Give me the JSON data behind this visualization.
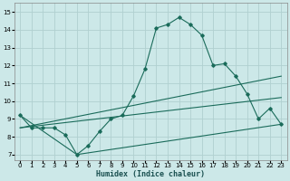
{
  "xlabel": "Humidex (Indice chaleur)",
  "background_color": "#cce8e8",
  "grid_color": "#b0d0d0",
  "line_color": "#1a6b5a",
  "xlim": [
    -0.5,
    23.5
  ],
  "ylim": [
    6.7,
    15.5
  ],
  "xticks": [
    0,
    1,
    2,
    3,
    4,
    5,
    6,
    7,
    8,
    9,
    10,
    11,
    12,
    13,
    14,
    15,
    16,
    17,
    18,
    19,
    20,
    21,
    22,
    23
  ],
  "yticks": [
    7,
    8,
    9,
    10,
    11,
    12,
    13,
    14,
    15
  ],
  "line1_x": [
    0,
    1,
    2,
    3,
    4,
    5,
    6,
    7,
    8,
    9,
    10,
    11,
    12,
    13,
    14,
    15,
    16,
    17,
    18,
    19,
    20,
    21,
    22,
    23
  ],
  "line1_y": [
    9.2,
    8.5,
    8.5,
    8.5,
    8.1,
    7.0,
    7.5,
    8.3,
    9.0,
    9.2,
    10.3,
    11.8,
    14.1,
    14.3,
    14.7,
    14.3,
    13.7,
    12.0,
    12.1,
    11.4,
    10.4,
    9.0,
    9.6,
    8.7
  ],
  "line2_x": [
    0,
    5,
    23
  ],
  "line2_y": [
    9.2,
    7.0,
    8.7
  ],
  "line3_x": [
    0,
    23
  ],
  "line3_y": [
    8.5,
    11.4
  ],
  "line4_x": [
    0,
    23
  ],
  "line4_y": [
    8.5,
    10.2
  ],
  "tick_fontsize": 5.0,
  "xlabel_fontsize": 6.0,
  "linewidth": 0.8,
  "markersize": 1.8
}
